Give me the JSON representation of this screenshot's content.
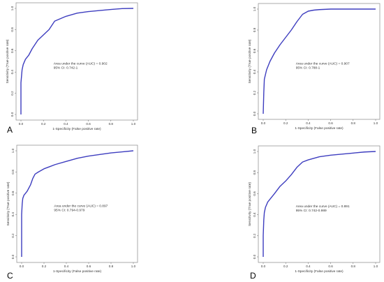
{
  "chart_data": [
    {
      "type": "line",
      "panel": "A",
      "xlabel": "1-Specificity (False positive rate)",
      "ylabel": "Sensitivity (True positive rate)",
      "xlim": [
        0,
        1
      ],
      "ylim": [
        0,
        1
      ],
      "xticks": [
        "0.0",
        "0.2",
        "0.4",
        "0.6",
        "0.8",
        "1.0"
      ],
      "yticks": [
        "0.0",
        "0.2",
        "0.4",
        "0.6",
        "0.8",
        "1.0"
      ],
      "annotation_auc": "Area under the curve (AUC) = 0.902",
      "annotation_ci": "95% CI: 0.742-1",
      "line_color": "#3d3dbf",
      "grid": false,
      "x": [
        0,
        0.0,
        0.01,
        0.02,
        0.04,
        0.07,
        0.1,
        0.15,
        0.2,
        0.25,
        0.3,
        0.4,
        0.5,
        0.6,
        0.7,
        0.8,
        0.9,
        1.0
      ],
      "y": [
        0,
        0.3,
        0.42,
        0.47,
        0.52,
        0.56,
        0.62,
        0.7,
        0.75,
        0.8,
        0.88,
        0.925,
        0.955,
        0.97,
        0.98,
        0.99,
        0.998,
        1.0
      ]
    },
    {
      "type": "line",
      "panel": "B",
      "xlabel": "1-Specificity (False positive rate)",
      "ylabel": "Sensitivity (True positive rate)",
      "xlim": [
        0,
        1
      ],
      "ylim": [
        0,
        1
      ],
      "xticks": [
        "0.0",
        "0.2",
        "0.4",
        "0.6",
        "0.8",
        "1.0"
      ],
      "yticks": [
        "0.0",
        "0.2",
        "0.4",
        "0.6",
        "0.8",
        "1.0"
      ],
      "annotation_auc": "Area under the curve (AUC) = 0.907",
      "annotation_ci": "95% CI: 0.788-1",
      "line_color": "#3d3dbf",
      "grid": false,
      "x": [
        0,
        0.005,
        0.01,
        0.03,
        0.06,
        0.1,
        0.15,
        0.2,
        0.25,
        0.3,
        0.35,
        0.4,
        0.45,
        0.5,
        0.6,
        0.8,
        1.0
      ],
      "y": [
        0,
        0.2,
        0.33,
        0.42,
        0.5,
        0.58,
        0.66,
        0.73,
        0.8,
        0.88,
        0.95,
        0.98,
        0.99,
        0.995,
        1.0,
        1.0,
        1.0
      ]
    },
    {
      "type": "line",
      "panel": "C",
      "xlabel": "1-Specificity (False positive rate)",
      "ylabel": "Sensitivity (True positive rate)",
      "xlim": [
        0,
        1
      ],
      "ylim": [
        0,
        1
      ],
      "xticks": [
        "0.0",
        "0.2",
        "0.4",
        "0.6",
        "0.8",
        "1.0"
      ],
      "yticks": [
        "0.0",
        "0.2",
        "0.4",
        "0.6",
        "0.8",
        "1.0"
      ],
      "annotation_auc": "Area under the curve (AUC) = 0.897",
      "annotation_ci": "95% CI: 0.794-0.979",
      "line_color": "#3d3dbf",
      "grid": false,
      "x": [
        0,
        0.0,
        0.005,
        0.01,
        0.02,
        0.05,
        0.08,
        0.1,
        0.12,
        0.15,
        0.2,
        0.25,
        0.3,
        0.4,
        0.5,
        0.6,
        0.7,
        0.8,
        0.9,
        1.0
      ],
      "y": [
        0,
        0.4,
        0.5,
        0.55,
        0.58,
        0.62,
        0.68,
        0.74,
        0.78,
        0.8,
        0.83,
        0.85,
        0.87,
        0.9,
        0.93,
        0.95,
        0.965,
        0.98,
        0.99,
        1.0
      ]
    },
    {
      "type": "line",
      "panel": "D",
      "xlabel": "1-Specificity (False positive rate)",
      "ylabel": "Sensitivity (True positive rate)",
      "xlim": [
        0,
        1
      ],
      "ylim": [
        0,
        1
      ],
      "xticks": [
        "0.0",
        "0.2",
        "0.4",
        "0.6",
        "0.8",
        "1.0"
      ],
      "yticks": [
        "0.0",
        "0.2",
        "0.4",
        "0.6",
        "0.8",
        "1.0"
      ],
      "annotation_auc": "Area under the curve (AUC) = 0.891",
      "annotation_ci": "95% CI: 0.742-0.989",
      "line_color": "#3d3dbf",
      "grid": false,
      "x": [
        0,
        0.0,
        0.005,
        0.01,
        0.02,
        0.04,
        0.07,
        0.1,
        0.15,
        0.2,
        0.25,
        0.3,
        0.35,
        0.4,
        0.5,
        0.6,
        0.7,
        0.8,
        0.9,
        1.0
      ],
      "y": [
        0,
        0.2,
        0.35,
        0.42,
        0.47,
        0.52,
        0.56,
        0.6,
        0.67,
        0.72,
        0.78,
        0.85,
        0.9,
        0.92,
        0.95,
        0.965,
        0.975,
        0.985,
        0.995,
        1.0
      ]
    }
  ]
}
